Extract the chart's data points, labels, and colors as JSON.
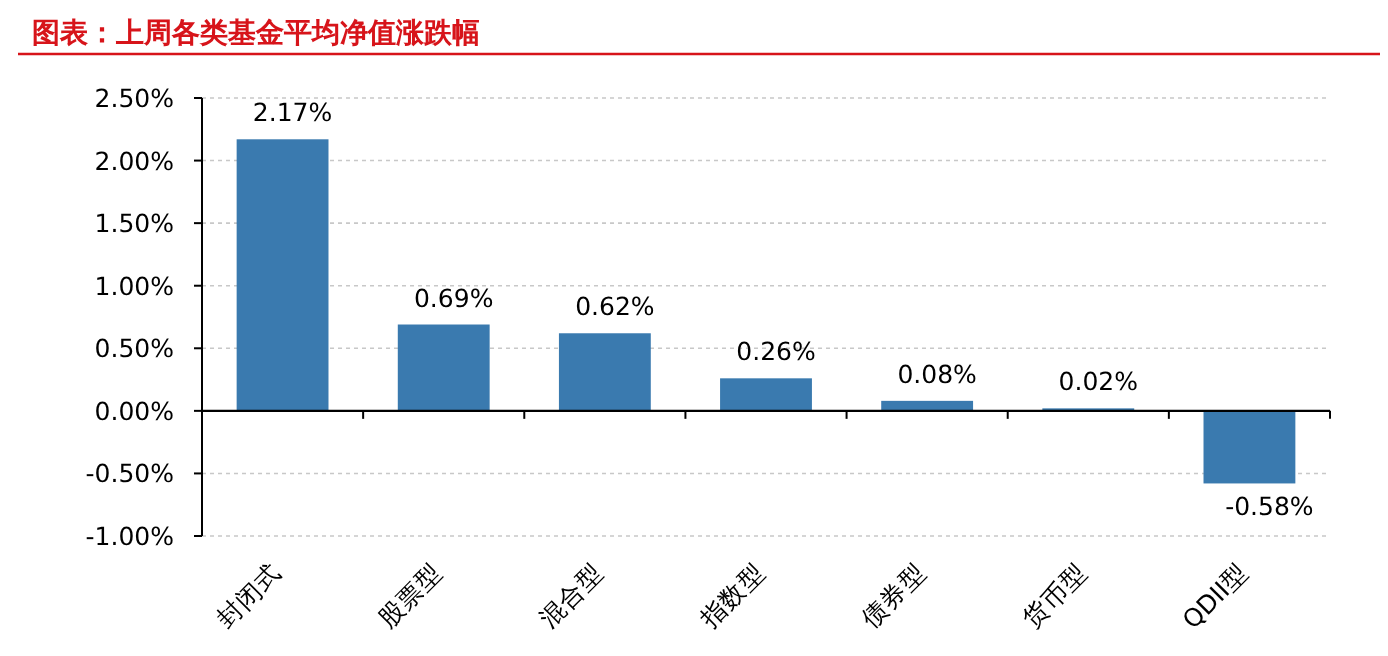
{
  "chart_data": {
    "type": "bar",
    "title": "图表：上周各类基金平均净值涨跌幅",
    "categories": [
      "封闭式",
      "股票型",
      "混合型",
      "指数型",
      "债券型",
      "货币型",
      "QDII型"
    ],
    "values": [
      2.17,
      0.69,
      0.62,
      0.26,
      0.08,
      0.02,
      -0.58
    ],
    "value_labels": [
      "2.17%",
      "0.69%",
      "0.62%",
      "0.26%",
      "0.08%",
      "0.02%",
      "-0.58%"
    ],
    "color": "#3a7aaf",
    "ylim": [
      -1,
      2.5
    ],
    "yticks": [
      {
        "value": -1,
        "label": "-1.00%"
      },
      {
        "value": -0.5,
        "label": "-0.50%"
      },
      {
        "value": 0,
        "label": "0.00%"
      },
      {
        "value": 0.5,
        "label": "0.50%"
      },
      {
        "value": 1,
        "label": "1.00%"
      },
      {
        "value": 1.5,
        "label": "1.50%"
      },
      {
        "value": 2,
        "label": "2.00%"
      },
      {
        "value": 2.5,
        "label": "2.50%"
      }
    ],
    "grid": "y"
  }
}
